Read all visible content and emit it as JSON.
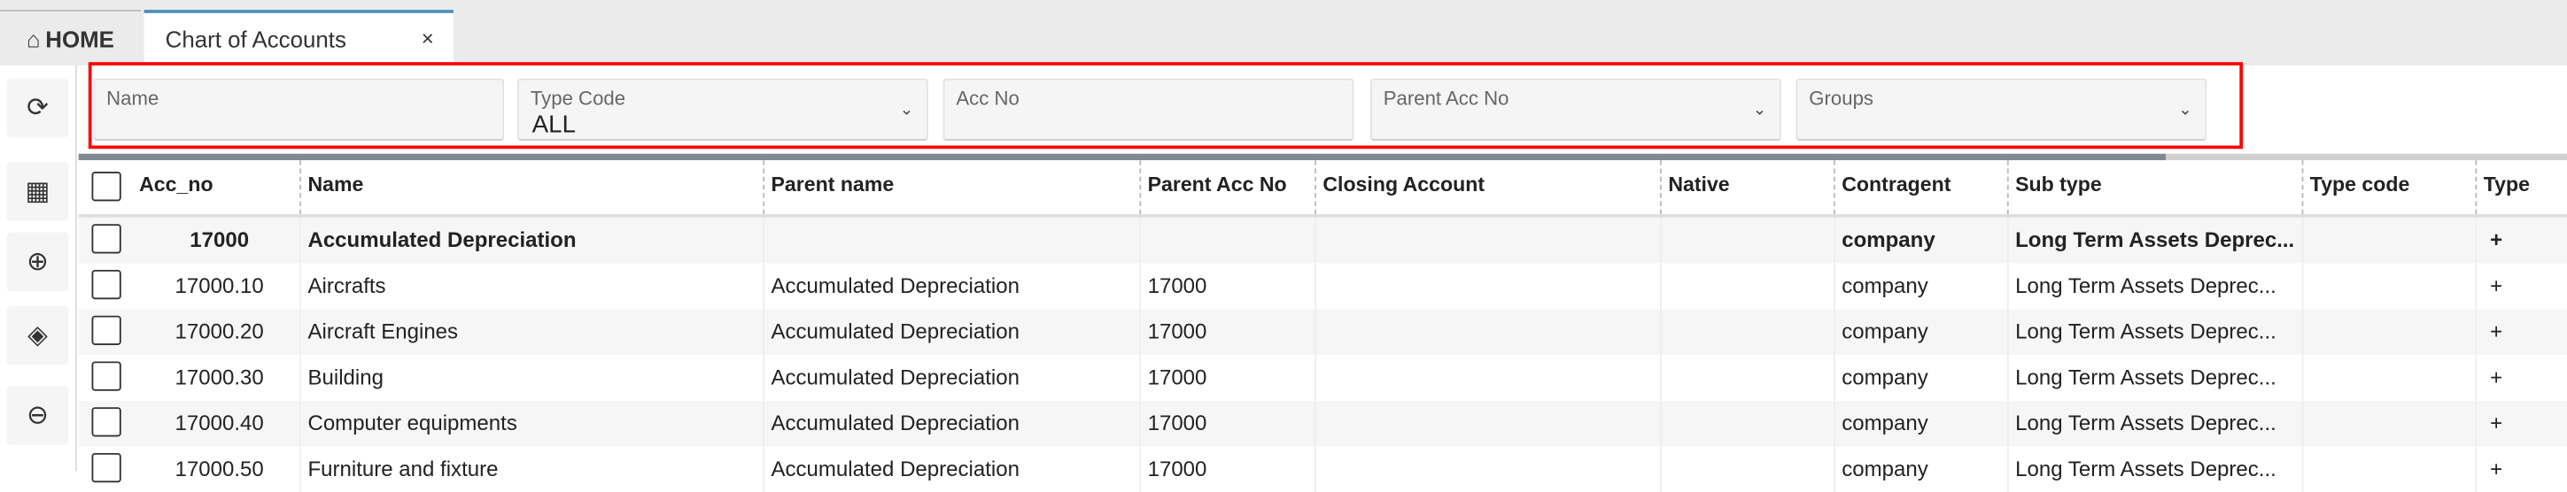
{
  "tabs": [
    {
      "label": "HOME",
      "icon": "home-icon"
    },
    {
      "label": "Chart of Accounts",
      "close": "×"
    }
  ],
  "toolbar": [
    {
      "icon": "refresh-icon",
      "glyph": "⟳"
    },
    {
      "icon": "calculator-file-icon",
      "glyph": "▦"
    },
    {
      "icon": "plus-circle-icon",
      "glyph": "⊕"
    },
    {
      "icon": "eraser-icon",
      "glyph": "◈"
    },
    {
      "icon": "minus-circle-icon",
      "glyph": "⊖"
    }
  ],
  "filters": {
    "name": {
      "label": "Name",
      "value": ""
    },
    "type_code": {
      "label": "Type Code",
      "value": "ALL"
    },
    "acc_no": {
      "label": "Acc No",
      "value": ""
    },
    "parent_acc_no": {
      "label": "Parent Acc No",
      "value": ""
    },
    "groups": {
      "label": "Groups",
      "value": ""
    }
  },
  "highlight_color": "#ff0000",
  "columns": [
    "Acc_no",
    "Name",
    "Parent name",
    "Parent Acc No",
    "Closing Account",
    "Native",
    "Contragent",
    "Sub type",
    "Type code",
    "Type"
  ],
  "rows": [
    {
      "bold": true,
      "cells": [
        "17000",
        "Accumulated Depreciation",
        "",
        "",
        "",
        "",
        "company",
        "Long Term Assets Deprec...",
        "",
        "+"
      ]
    },
    {
      "cells": [
        "17000.10",
        "Aircrafts",
        "Accumulated Depreciation",
        "17000",
        "",
        "",
        "company",
        "Long Term Assets Deprec...",
        "",
        "+"
      ]
    },
    {
      "cells": [
        "17000.20",
        "Aircraft Engines",
        "Accumulated Depreciation",
        "17000",
        "",
        "",
        "company",
        "Long Term Assets Deprec...",
        "",
        "+"
      ]
    },
    {
      "cells": [
        "17000.30",
        "Building",
        "Accumulated Depreciation",
        "17000",
        "",
        "",
        "company",
        "Long Term Assets Deprec...",
        "",
        "+"
      ]
    },
    {
      "cells": [
        "17000.40",
        "Computer equipments",
        "Accumulated Depreciation",
        "17000",
        "",
        "",
        "company",
        "Long Term Assets Deprec...",
        "",
        "+"
      ]
    },
    {
      "cells": [
        "17000.50",
        "Furniture and fixture",
        "Accumulated Depreciation",
        "17000",
        "",
        "",
        "company",
        "Long Term Assets Deprec...",
        "",
        "+"
      ]
    }
  ]
}
